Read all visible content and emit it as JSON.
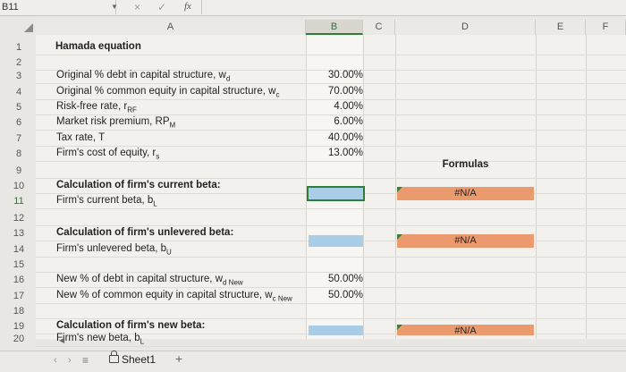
{
  "formula_bar": {
    "name_box": "B11",
    "fx_label": "fx",
    "cancel_glyph": "×",
    "confirm_glyph": "✓"
  },
  "columns": [
    "A",
    "B",
    "C",
    "D",
    "E",
    "F"
  ],
  "rows": [
    {
      "n": "1",
      "label": "Hamada equation",
      "bold": true
    },
    {
      "n": "2",
      "label": ""
    },
    {
      "n": "3",
      "label": "Original % debt in capital structure, w",
      "sub": "d",
      "value": "30.00%"
    },
    {
      "n": "4",
      "label": "Original % common equity in capital structure, w",
      "sub": "c",
      "value": "70.00%"
    },
    {
      "n": "5",
      "label": "Risk-free rate, r",
      "sub": "RF",
      "value": "4.00%"
    },
    {
      "n": "6",
      "label": "Market risk premium, RP",
      "sub": "M",
      "value": "6.00%"
    },
    {
      "n": "7",
      "label": "Tax rate, T",
      "value": "40.00%"
    },
    {
      "n": "8",
      "label": "Firm's cost of equity, r",
      "sub": "s",
      "value": "13.00%"
    },
    {
      "n": "9",
      "label": ""
    },
    {
      "n": "10",
      "label": "Calculation of firm's current beta:",
      "bold": true
    },
    {
      "n": "11",
      "label": "Firm's current beta, b",
      "sub": "L"
    },
    {
      "n": "12",
      "label": ""
    },
    {
      "n": "13",
      "label": "Calculation of firm's unlevered beta:",
      "bold": true
    },
    {
      "n": "14",
      "label": "Firm's unlevered beta, b",
      "sub": "U"
    },
    {
      "n": "15",
      "label": ""
    },
    {
      "n": "16",
      "label": "New % of debt in capital structure, w",
      "sub": "d New",
      "value": "50.00%"
    },
    {
      "n": "17",
      "label": "New % of common equity in capital structure, w",
      "sub": "c New",
      "value": "50.00%"
    },
    {
      "n": "18",
      "label": ""
    },
    {
      "n": "19",
      "label": "Calculation of firm's new beta:",
      "bold": true
    },
    {
      "n": "20",
      "label": "Firm's new beta, b",
      "sub": "L"
    }
  ],
  "formulas_label": "Formulas",
  "na_value": "#N/A",
  "sheet_tab": "Sheet1",
  "add_sheet": "+",
  "menu_glyph": "≡",
  "nav_prev": "‹",
  "nav_next": "›",
  "colors": {
    "orange": "#eb9a6e",
    "blue": "#a9cde6",
    "green": "#2e7d3b"
  }
}
